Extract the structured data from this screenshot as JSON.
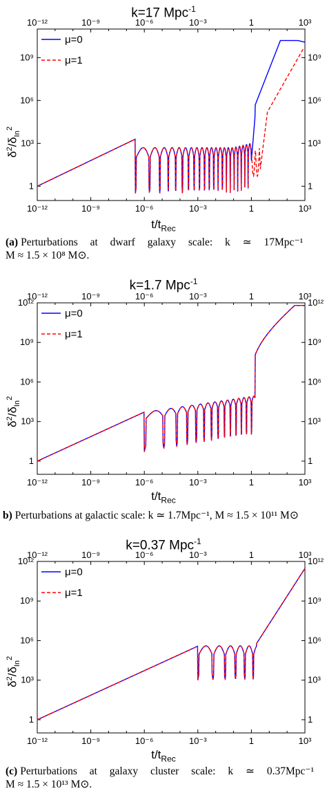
{
  "chart_data": [
    {
      "type": "line",
      "panel_label": "(a)",
      "title": "k=17 Mpc",
      "title_sup": "-1",
      "xlabel": "t/t",
      "xlabel_sub": "Rec",
      "ylabel": "δ²/δ_In²",
      "x_scale": "log",
      "y_scale": "log",
      "xlim": [
        1e-12,
        1000.0
      ],
      "ylim": [
        0.1,
        100000000000.0
      ],
      "x_ticks": [
        "10⁻¹²",
        "10⁻⁹",
        "10⁻⁶",
        "10⁻³",
        "1",
        "10³"
      ],
      "y_ticks": [
        "1",
        "10³",
        "10⁶",
        "10⁹"
      ],
      "grid": false,
      "legend_position": "top-left",
      "series": [
        {
          "name": "μ=0",
          "color": "#0000ff",
          "style": "solid"
        },
        {
          "name": "μ=1",
          "color": "#ff0000",
          "style": "dashed"
        }
      ],
      "caption_label": "(a)",
      "caption_lines": [
        "Perturbations at dwarf galaxy scale: k ≃ 17Mpc⁻¹",
        "M ≈ 1.5 × 10⁸ M⊙."
      ]
    },
    {
      "type": "line",
      "panel_label": "(b)",
      "title": "k=1.7 Mpc",
      "title_sup": "-1",
      "xlabel": "t/t",
      "xlabel_sub": "Rec",
      "ylabel": "δ²/δ_In²",
      "x_scale": "log",
      "y_scale": "log",
      "xlim": [
        1e-12,
        1000.0
      ],
      "ylim": [
        0.1,
        1000000000000.0
      ],
      "x_ticks": [
        "10⁻¹²",
        "10⁻⁹",
        "10⁻⁶",
        "10⁻³",
        "1",
        "10³"
      ],
      "y_ticks": [
        "1",
        "10³",
        "10⁶",
        "10⁹",
        "10¹²"
      ],
      "grid": false,
      "legend_position": "top-left",
      "series": [
        {
          "name": "μ=0",
          "color": "#0000ff",
          "style": "solid"
        },
        {
          "name": "μ=1",
          "color": "#ff0000",
          "style": "dashed"
        }
      ],
      "caption_label": "b)",
      "caption_lines": [
        "Perturbations at galactic scale: k ≃ 1.7Mpc⁻¹, M ≈ 1.5 × 10¹¹ M⊙"
      ]
    },
    {
      "type": "line",
      "panel_label": "(c)",
      "title": "k=0.37 Mpc",
      "title_sup": "-1",
      "xlabel": "t/t",
      "xlabel_sub": "Rec",
      "ylabel": "δ²/δ_In²",
      "x_scale": "log",
      "y_scale": "log",
      "xlim": [
        1e-12,
        1000.0
      ],
      "ylim": [
        0.1,
        1000000000000.0
      ],
      "x_ticks": [
        "10⁻¹²",
        "10⁻⁹",
        "10⁻⁶",
        "10⁻³",
        "1",
        "10³"
      ],
      "y_ticks": [
        "1",
        "10³",
        "10⁶",
        "10⁹",
        "10¹²"
      ],
      "grid": false,
      "legend_position": "top-left",
      "series": [
        {
          "name": "μ=0",
          "color": "#0000ff",
          "style": "solid"
        },
        {
          "name": "μ=1",
          "color": "#ff0000",
          "style": "dashed"
        }
      ],
      "caption_label": "(c)",
      "caption_lines": [
        "Perturbations at galaxy cluster scale: k ≃ 0.37Mpc⁻¹",
        "M ≈ 1.5 × 10¹³ M⊙."
      ]
    }
  ]
}
